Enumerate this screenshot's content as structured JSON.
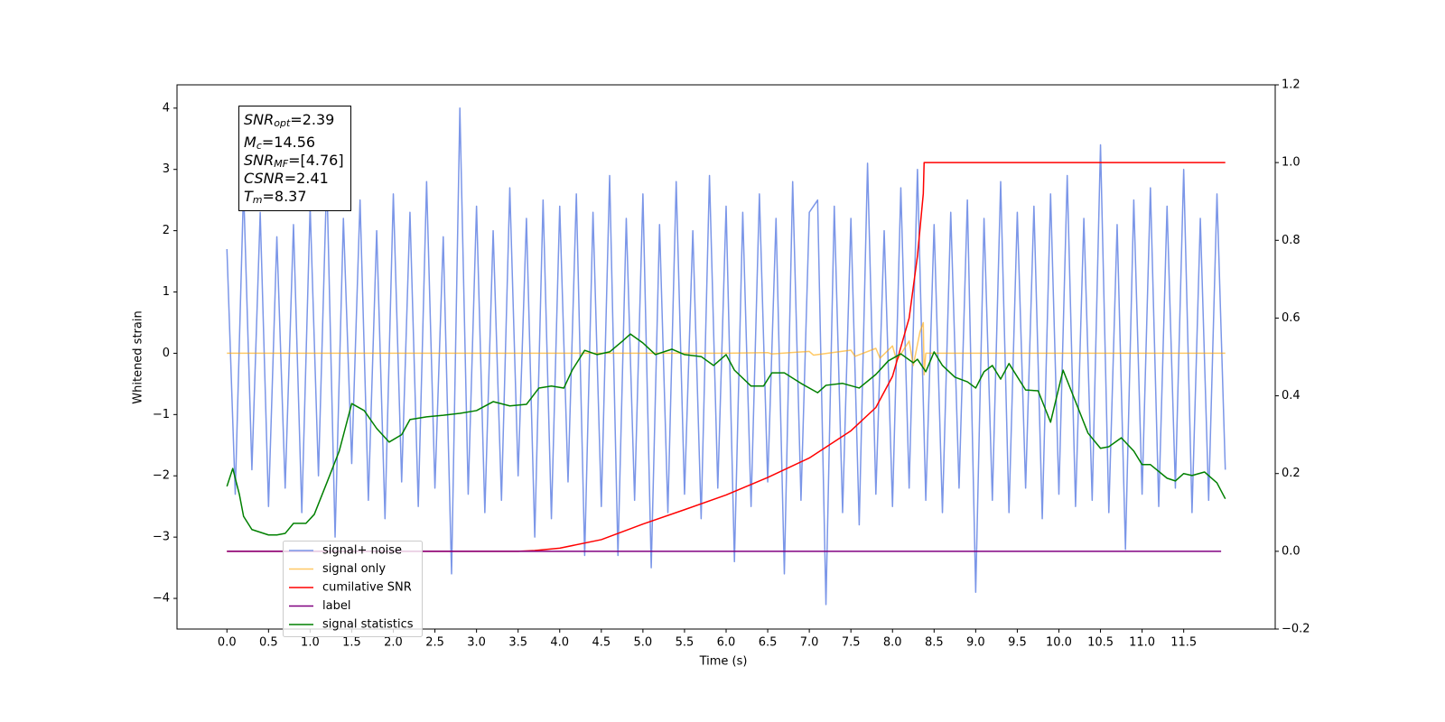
{
  "chart_data": {
    "type": "line",
    "xlabel": "Time (s)",
    "ylabel": "Whitened strain",
    "xlim": [
      -0.6,
      12.6
    ],
    "ylim": [
      -4.5,
      4.38
    ],
    "y2lim": [
      -0.2,
      1.2
    ],
    "xticks": [
      {
        "value": 0,
        "label": "0.0"
      },
      0.5,
      {
        "value": 1,
        "label": "1.0"
      },
      1.5,
      {
        "value": 2,
        "label": "2.0"
      },
      2.5,
      {
        "value": 3,
        "label": "3.0"
      },
      3.5,
      {
        "value": 4,
        "label": "4.0"
      },
      4.5,
      {
        "value": 5,
        "label": "5.0"
      },
      5.5,
      {
        "value": 6,
        "label": "6.0"
      },
      6.5,
      {
        "value": 7,
        "label": "7.0"
      },
      7.5,
      {
        "value": 8,
        "label": "8.0"
      },
      8.5,
      {
        "value": 9,
        "label": "9.0"
      },
      9.5,
      {
        "value": 10,
        "label": "10.0"
      },
      10.5,
      {
        "value": 11,
        "label": "11.0"
      },
      11.5
    ],
    "yticks": [
      {
        "value": -4,
        "label": "−4"
      },
      {
        "value": -3,
        "label": "−3"
      },
      {
        "value": -2,
        "label": "−2"
      },
      {
        "value": -1,
        "label": "−1"
      },
      0,
      1,
      2,
      3,
      4
    ],
    "y2ticks": [
      {
        "value": -0.2,
        "label": "−0.2"
      },
      {
        "value": 0,
        "label": "0.0"
      },
      0.2,
      0.4,
      0.6,
      0.8,
      {
        "value": 1,
        "label": "1.0"
      },
      1.2
    ],
    "legend": "lower left",
    "annotations": [
      {
        "symbol": "SNR",
        "sub": "opt",
        "text": "=2.39"
      },
      {
        "symbol": "M",
        "sub": "c",
        "text": "=14.56"
      },
      {
        "symbol": "SNR",
        "sub": "MF",
        "text": "=[4.76]"
      },
      {
        "symbol": "CSNR",
        "text": "=2.41"
      },
      {
        "symbol": "T",
        "sub": "m",
        "text": "=8.37"
      }
    ],
    "series": [
      {
        "name": "signal+ noise",
        "color": "#7b96e8",
        "x": [
          0,
          0.1,
          0.2,
          0.3,
          0.4,
          0.5,
          0.6,
          0.7,
          0.8,
          0.9,
          1,
          1.1,
          1.2,
          1.3,
          1.4,
          1.5,
          1.6,
          1.7,
          1.8,
          1.9,
          2,
          2.1,
          2.2,
          2.3,
          2.4,
          2.5,
          2.6,
          2.7,
          2.8,
          2.9,
          3,
          3.1,
          3.2,
          3.3,
          3.4,
          3.5,
          3.6,
          3.7,
          3.8,
          3.9,
          4,
          4.1,
          4.2,
          4.3,
          4.4,
          4.5,
          4.6,
          4.7,
          4.8,
          4.9,
          5,
          5.1,
          5.2,
          5.3,
          5.4,
          5.5,
          5.6,
          5.7,
          5.8,
          5.9,
          6,
          6.1,
          6.2,
          6.3,
          6.4,
          6.5,
          6.6,
          6.7,
          6.8,
          6.9,
          7,
          7.1,
          7.2,
          7.3,
          7.4,
          7.5,
          7.6,
          7.7,
          7.8,
          7.9,
          8,
          8.1,
          8.2,
          8.3,
          8.4,
          8.5,
          8.6,
          8.7,
          8.8,
          8.9,
          9,
          9.1,
          9.2,
          9.3,
          9.4,
          9.5,
          9.6,
          9.7,
          9.8,
          9.9,
          10,
          10.1,
          10.2,
          10.3,
          10.4,
          10.5,
          10.6,
          10.7,
          10.8,
          10.9,
          11,
          11.1,
          11.2,
          11.3,
          11.4,
          11.5,
          11.6,
          11.7,
          11.8,
          11.9,
          12
        ],
        "values": [
          1.7,
          -2.3,
          2.7,
          -1.9,
          2.3,
          -2.5,
          1.9,
          -2.2,
          2.1,
          -2.6,
          2.4,
          -2.0,
          2.9,
          -3.0,
          2.2,
          -1.8,
          2.5,
          -2.4,
          2.0,
          -2.7,
          2.6,
          -2.1,
          2.3,
          -2.5,
          2.8,
          -2.2,
          1.9,
          -3.6,
          4.0,
          -2.3,
          2.4,
          -2.6,
          2.0,
          -2.4,
          2.7,
          -2.0,
          2.2,
          -3.0,
          2.5,
          -2.7,
          2.4,
          -2.1,
          2.6,
          -3.3,
          2.3,
          -2.5,
          2.9,
          -3.3,
          2.2,
          -2.4,
          2.6,
          -3.5,
          2.1,
          -2.6,
          2.8,
          -2.3,
          2.0,
          -2.7,
          2.9,
          -2.2,
          2.4,
          -3.4,
          2.3,
          -2.5,
          2.6,
          -2.1,
          2.2,
          -3.6,
          2.8,
          -2.4,
          2.3,
          2.5,
          -4.1,
          2.4,
          -2.6,
          2.2,
          -2.8,
          3.1,
          -2.3,
          2.0,
          -2.5,
          2.7,
          -2.2,
          3.0,
          -2.4,
          2.1,
          -2.6,
          2.3,
          -2.2,
          2.5,
          -3.9,
          2.2,
          -2.4,
          2.8,
          -2.6,
          2.3,
          -2.2,
          2.4,
          -2.7,
          2.6,
          -2.3,
          2.9,
          -2.5,
          2.2,
          -2.4,
          3.4,
          -2.6,
          2.1,
          -3.2,
          2.5,
          -2.3,
          2.7,
          -2.5,
          2.4,
          -2.2,
          3.0,
          -2.6,
          2.2,
          -2.4,
          2.6,
          -1.9
        ]
      },
      {
        "name": "signal only",
        "color": "#ffa500",
        "x": [
          0,
          6.0,
          6.5,
          6.55,
          7.0,
          7.05,
          7.5,
          7.55,
          7.8,
          7.85,
          8.0,
          8.05,
          8.2,
          8.25,
          8.33,
          8.37,
          8.38,
          8.4,
          12.0
        ],
        "values": [
          0,
          0,
          0.01,
          -0.01,
          0.03,
          -0.03,
          0.05,
          -0.05,
          0.08,
          -0.08,
          0.12,
          -0.12,
          0.2,
          -0.2,
          0.35,
          0.5,
          -0.35,
          0,
          0
        ]
      },
      {
        "name": "cumilative SNR",
        "color": "#ff0000",
        "axis": "y2",
        "x": [
          0,
          3.5,
          3.7,
          4.0,
          4.5,
          5.0,
          5.5,
          6.0,
          6.5,
          7.0,
          7.5,
          7.8,
          8.0,
          8.2,
          8.3,
          8.37,
          8.38,
          12.0
        ],
        "values": [
          0,
          0,
          0.002,
          0.008,
          0.03,
          0.07,
          0.107,
          0.145,
          0.19,
          0.24,
          0.31,
          0.37,
          0.45,
          0.6,
          0.76,
          0.92,
          1.0,
          1.0
        ]
      },
      {
        "name": "label",
        "color": "#800080",
        "axis": "y2",
        "x": [
          0,
          11.95
        ],
        "values": [
          0,
          0
        ]
      },
      {
        "name": "signal statistics",
        "color": "#008000",
        "axis": "y2",
        "x": [
          0,
          0.07,
          0.15,
          0.2,
          0.3,
          0.5,
          0.6,
          0.7,
          0.8,
          0.95,
          1.05,
          1.2,
          1.35,
          1.5,
          1.65,
          1.8,
          1.95,
          2.1,
          2.2,
          2.4,
          2.6,
          2.8,
          3.0,
          3.2,
          3.4,
          3.6,
          3.75,
          3.9,
          4.05,
          4.15,
          4.3,
          4.45,
          4.6,
          4.75,
          4.85,
          5.0,
          5.15,
          5.35,
          5.5,
          5.7,
          5.85,
          6.0,
          6.1,
          6.3,
          6.45,
          6.55,
          6.7,
          6.9,
          7.1,
          7.2,
          7.4,
          7.6,
          7.8,
          7.95,
          8.1,
          8.25,
          8.3,
          8.4,
          8.5,
          8.6,
          8.75,
          8.9,
          9.0,
          9.1,
          9.2,
          9.3,
          9.4,
          9.6,
          9.75,
          9.9,
          10.05,
          10.2,
          10.35,
          10.5,
          10.6,
          10.75,
          10.9,
          11.0,
          11.1,
          11.3,
          11.4,
          11.5,
          11.6,
          11.75,
          11.9,
          12.0
        ],
        "values": [
          0.167,
          0.213,
          0.146,
          0.09,
          0.056,
          0.042,
          0.042,
          0.046,
          0.072,
          0.072,
          0.095,
          0.176,
          0.258,
          0.38,
          0.362,
          0.316,
          0.281,
          0.3,
          0.339,
          0.346,
          0.35,
          0.355,
          0.362,
          0.385,
          0.374,
          0.378,
          0.42,
          0.425,
          0.42,
          0.466,
          0.517,
          0.506,
          0.513,
          0.54,
          0.559,
          0.536,
          0.506,
          0.52,
          0.506,
          0.501,
          0.478,
          0.506,
          0.466,
          0.425,
          0.425,
          0.459,
          0.459,
          0.432,
          0.408,
          0.427,
          0.432,
          0.42,
          0.455,
          0.49,
          0.508,
          0.485,
          0.494,
          0.462,
          0.513,
          0.478,
          0.448,
          0.436,
          0.42,
          0.462,
          0.478,
          0.443,
          0.483,
          0.415,
          0.413,
          0.332,
          0.466,
          0.385,
          0.304,
          0.265,
          0.269,
          0.292,
          0.258,
          0.223,
          0.223,
          0.188,
          0.181,
          0.2,
          0.195,
          0.204,
          0.176,
          0.135
        ]
      }
    ]
  }
}
